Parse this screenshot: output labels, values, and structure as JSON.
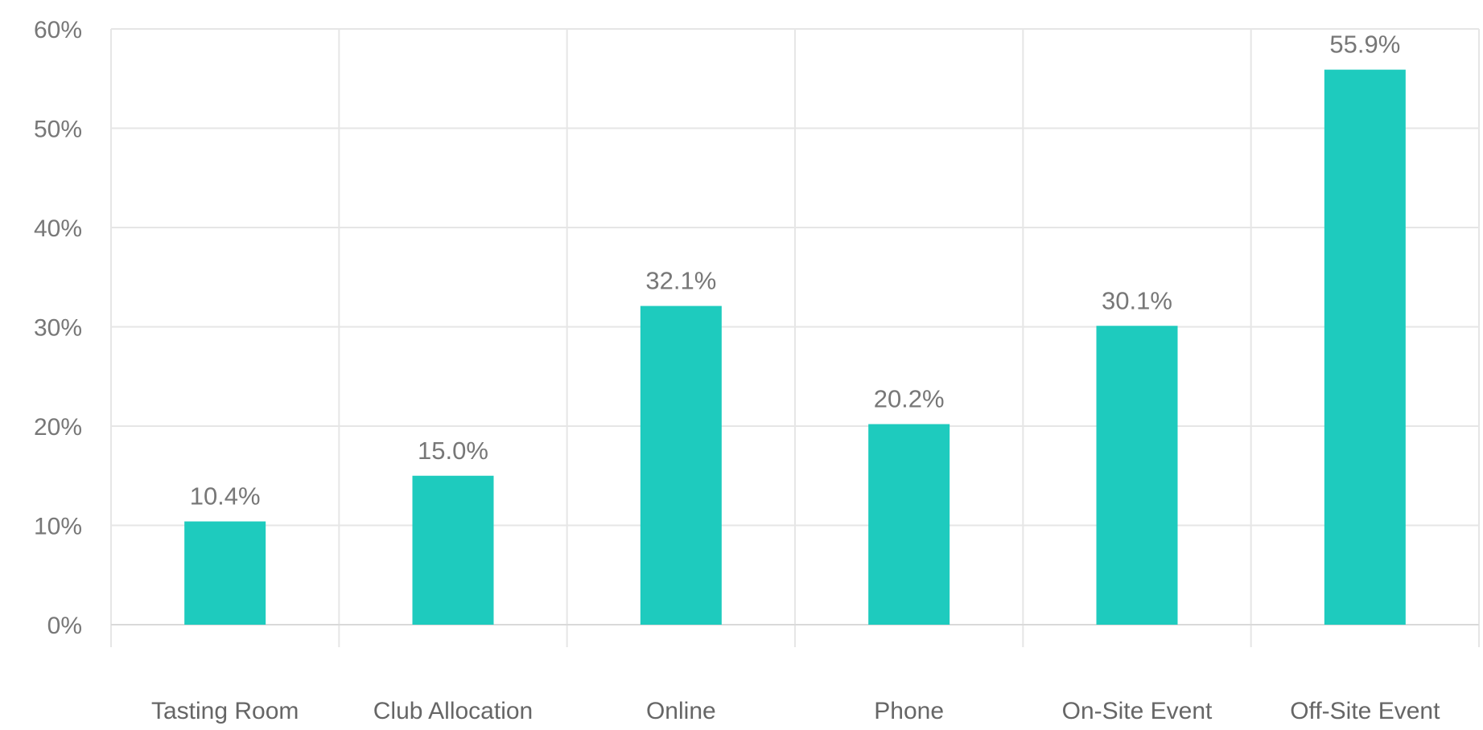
{
  "chart_data": {
    "type": "bar",
    "title": "",
    "xlabel": "",
    "ylabel": "",
    "categories": [
      "Tasting Room",
      "Club Allocation",
      "Online",
      "Phone",
      "On-Site Event",
      "Off-Site Event"
    ],
    "series": [
      {
        "values": [
          10.4,
          15.0,
          32.1,
          20.2,
          30.1,
          55.9
        ],
        "color": "#1ecbbe"
      }
    ],
    "data_labels": [
      "10.4%",
      "15.0%",
      "32.1%",
      "20.2%",
      "30.1%",
      "55.9%"
    ],
    "ylim": [
      0,
      60
    ],
    "y_ticks": [
      0,
      10,
      20,
      30,
      40,
      50,
      60
    ],
    "y_tick_labels": [
      "0%",
      "10%",
      "20%",
      "30%",
      "40%",
      "50%",
      "60%"
    ],
    "grid": true,
    "legend": "none"
  }
}
